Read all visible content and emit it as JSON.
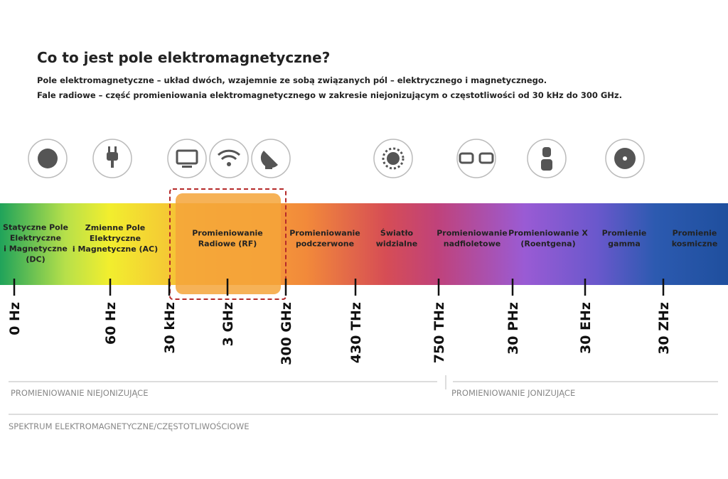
{
  "header": {
    "title": "Co to jest pole elektromagnetyczne?",
    "lines": [
      "Pole elektromagnetyczne – układ dwóch, wzajemnie ze sobą związanych pól – elektrycznego i magnetycznego.",
      "Fale radiowe – część promieniowania elektromagnetycznego w zakresie niejonizującym o częstotliwości od 30 kHz do 300 GHz."
    ]
  },
  "bands": [
    {
      "label": [
        "Statyczne Pole",
        "Elektryczne",
        "i Magnetyczne",
        "(DC)"
      ]
    },
    {
      "label": [
        "Zmienne Pole",
        "Elektryczne",
        "i Magnetyczne (AC)"
      ]
    },
    {
      "label": [
        "Promieniowanie",
        "Radiowe (RF)"
      ]
    },
    {
      "label": [
        "Promieniowanie",
        "podczerwone"
      ]
    },
    {
      "label": [
        "Światło",
        "widzialne"
      ]
    },
    {
      "label": [
        "Promieniowanie",
        "nadfioletowe"
      ]
    },
    {
      "label": [
        "Promieniowanie X",
        "(Roentgena)"
      ]
    },
    {
      "label": [
        "Promienie",
        "gamma"
      ]
    },
    {
      "label": [
        "Promienie",
        "kosmiczne"
      ]
    }
  ],
  "frequencies": [
    "0 Hz",
    "60 Hz",
    "30 kHz",
    "3 GHz",
    "300 GHz",
    "430 THz",
    "750 THz",
    "30 PHz",
    "30 EHz",
    "30 ZHz"
  ],
  "footer": {
    "non_ionizing": "PROMIENIOWANIE NIEJONIZUJĄCE",
    "ionizing": "PROMIENIOWANIE JONIZUJĄCE",
    "caption": "SPEKTRUM ELEKTROMAGNETYCZNE/CZĘSTOTLIWOŚCIOWE"
  }
}
